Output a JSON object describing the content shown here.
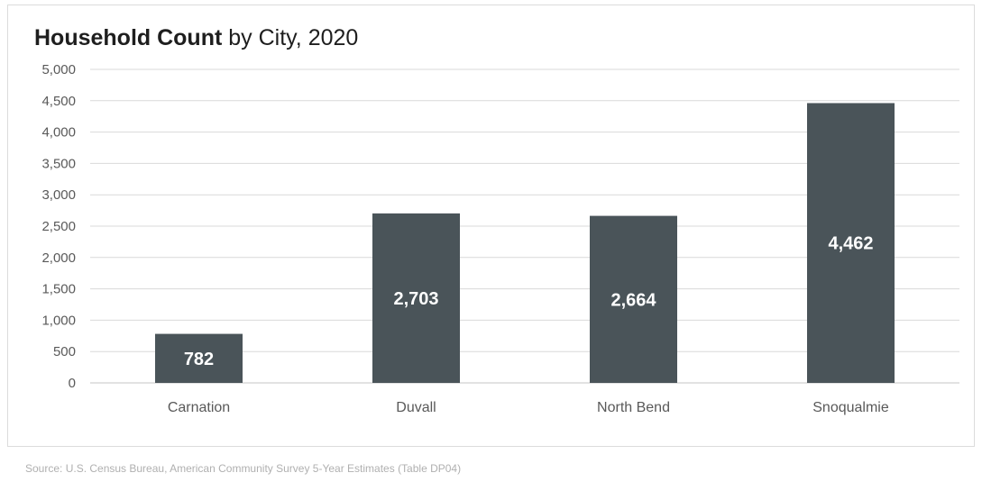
{
  "chart_data": {
    "type": "bar",
    "title_bold": "Household Count",
    "title_rest": " by City, 2020",
    "categories": [
      "Carnation",
      "Duvall",
      "North Bend",
      "Snoqualmie"
    ],
    "values": [
      782,
      2703,
      2664,
      4462
    ],
    "value_labels": [
      "782",
      "2,703",
      "2,664",
      "4,462"
    ],
    "ylim": [
      0,
      5000
    ],
    "yticks": [
      0,
      500,
      1000,
      1500,
      2000,
      2500,
      3000,
      3500,
      4000,
      4500,
      5000
    ],
    "ytick_labels": [
      "0",
      "500",
      "1,000",
      "1,500",
      "2,000",
      "2,500",
      "3,000",
      "3,500",
      "4,000",
      "4,500",
      "5,000"
    ],
    "grid": true,
    "bar_color": "#4a5459",
    "label_color": "#ffffff"
  },
  "source": "Source: U.S. Census Bureau, American Community Survey 5-Year Estimates (Table DP04)"
}
